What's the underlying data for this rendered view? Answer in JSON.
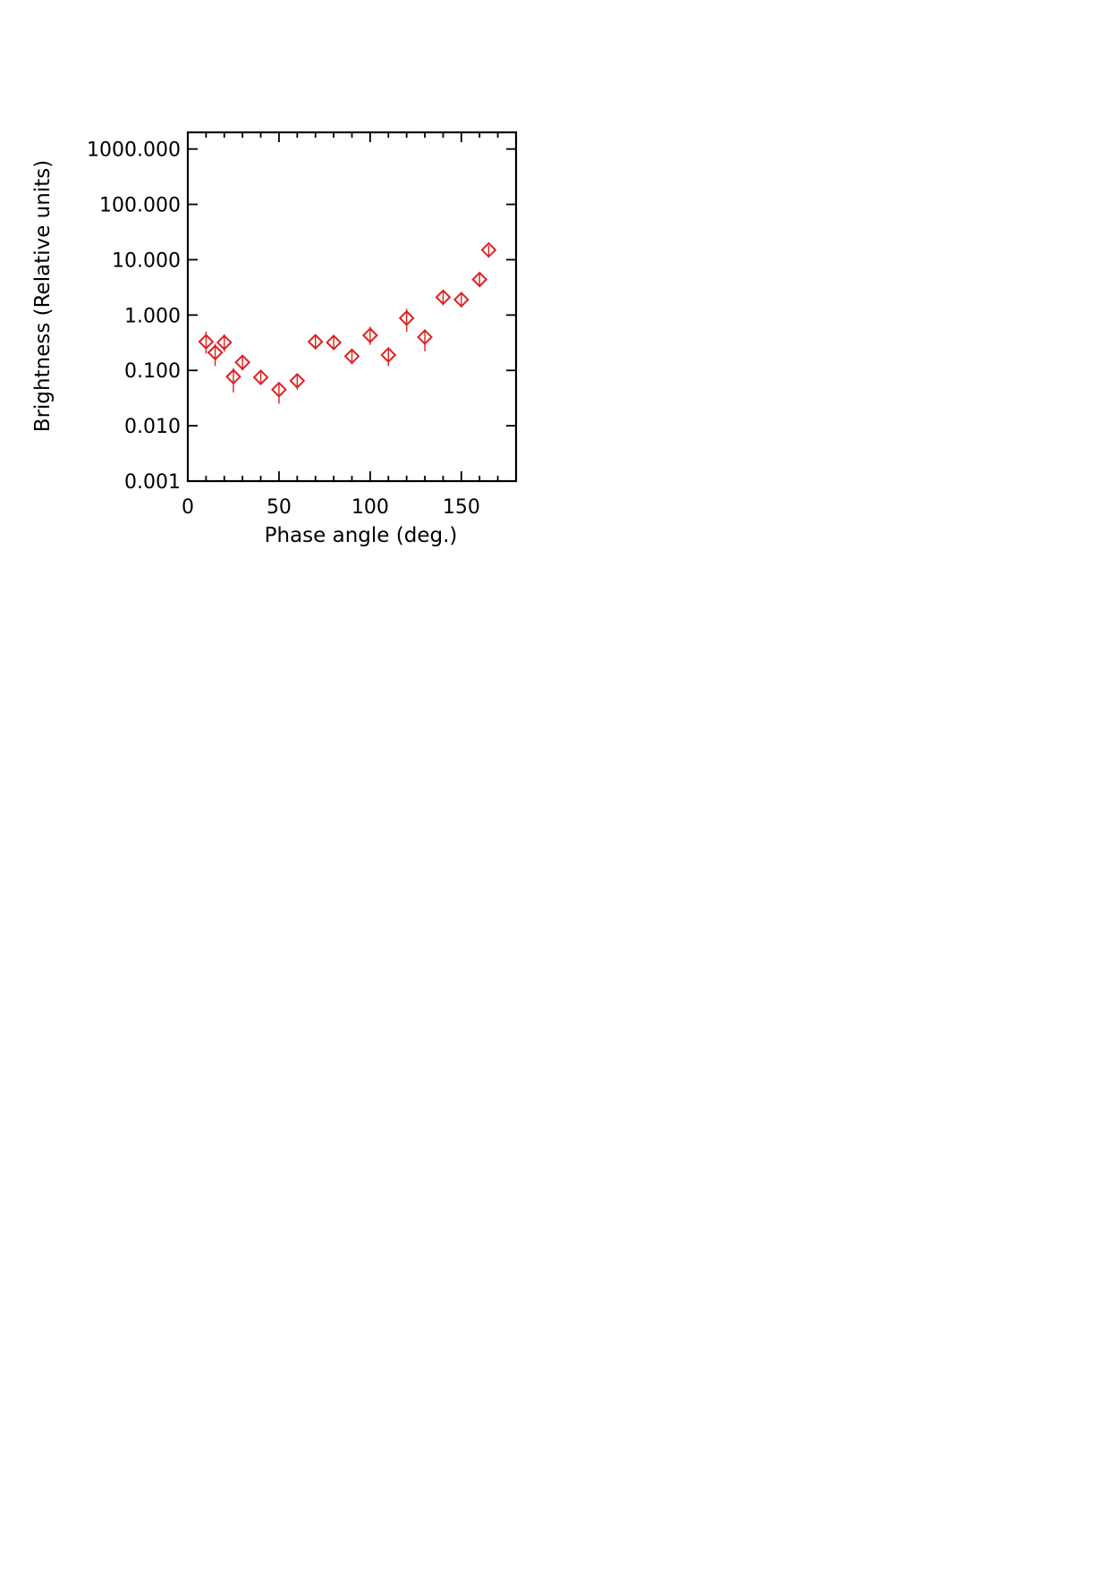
{
  "chart_data": {
    "type": "scatter",
    "xlabel": "Phase angle (deg.)",
    "ylabel": "Brightness (Relative units)",
    "xlim": [
      0,
      180
    ],
    "ylim": [
      0.001,
      2000
    ],
    "yscale": "log",
    "x_ticks": [
      0,
      50,
      100,
      150
    ],
    "x_tick_labels": [
      "0",
      "50",
      "100",
      "150"
    ],
    "y_ticks": [
      0.001,
      0.01,
      0.1,
      1,
      10,
      100,
      1000
    ],
    "y_tick_labels": [
      "0.001",
      "0.010",
      "0.100",
      "1.000",
      "10.000",
      "100.000",
      "1000.000"
    ],
    "grid": false,
    "marker": "diamond",
    "marker_color": "#e02020",
    "series": [
      {
        "points": [
          {
            "x": 10,
            "y": 0.33,
            "ylo": 0.2,
            "yhi": 0.5
          },
          {
            "x": 15,
            "y": 0.21,
            "ylo": 0.12,
            "yhi": 0.3
          },
          {
            "x": 20,
            "y": 0.32,
            "ylo": 0.22,
            "yhi": 0.45
          },
          {
            "x": 25,
            "y": 0.077,
            "ylo": 0.04,
            "yhi": 0.11
          },
          {
            "x": 30,
            "y": 0.14,
            "ylo": 0.1,
            "yhi": 0.18
          },
          {
            "x": 40,
            "y": 0.075,
            "ylo": 0.055,
            "yhi": 0.1
          },
          {
            "x": 50,
            "y": 0.045,
            "ylo": 0.025,
            "yhi": 0.06
          },
          {
            "x": 60,
            "y": 0.065,
            "ylo": 0.045,
            "yhi": 0.085
          },
          {
            "x": 70,
            "y": 0.33,
            "ylo": 0.24,
            "yhi": 0.42
          },
          {
            "x": 80,
            "y": 0.32,
            "ylo": 0.24,
            "yhi": 0.41
          },
          {
            "x": 90,
            "y": 0.18,
            "ylo": 0.13,
            "yhi": 0.24
          },
          {
            "x": 100,
            "y": 0.43,
            "ylo": 0.29,
            "yhi": 0.62
          },
          {
            "x": 110,
            "y": 0.19,
            "ylo": 0.12,
            "yhi": 0.26
          },
          {
            "x": 120,
            "y": 0.88,
            "ylo": 0.5,
            "yhi": 1.3
          },
          {
            "x": 130,
            "y": 0.4,
            "ylo": 0.22,
            "yhi": 0.55
          },
          {
            "x": 140,
            "y": 2.1,
            "ylo": 1.5,
            "yhi": 2.8
          },
          {
            "x": 150,
            "y": 1.9,
            "ylo": 1.4,
            "yhi": 2.5
          },
          {
            "x": 160,
            "y": 4.4,
            "ylo": 3.2,
            "yhi": 5.8
          },
          {
            "x": 165,
            "y": 15,
            "ylo": 12,
            "yhi": 18
          }
        ]
      }
    ]
  }
}
